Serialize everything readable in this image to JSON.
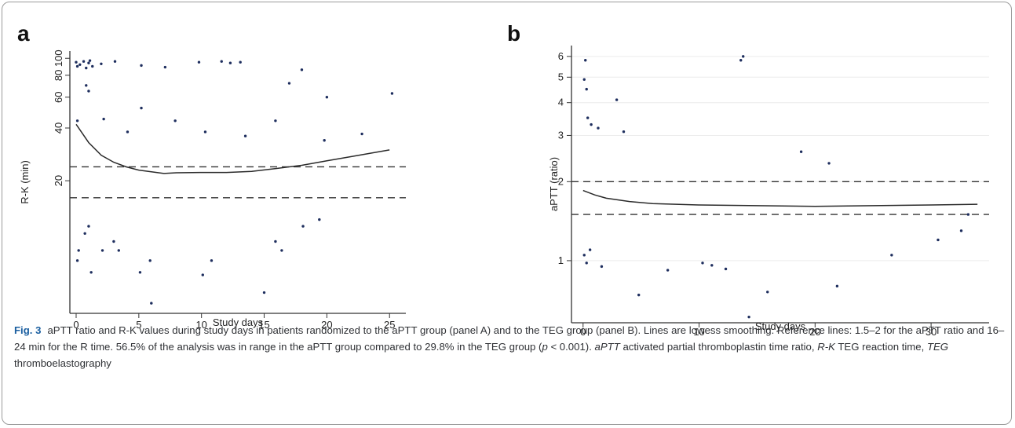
{
  "figure": {
    "caption_label": "Fig. 3",
    "caption_parts": [
      {
        "text": "aPTT ratio and R-K values during study days in patients randomized to the aPTT group (panel A) and to the TEG group (panel B). Lines are lowess smoothing. Reference lines: 1.5–2 for the aPTT ratio and 16–24 min for the R time. 56.5% of the analysis was in range in the aPTT group compared to 29.8% in the TEG group (",
        "italic": false
      },
      {
        "text": "p",
        "italic": true
      },
      {
        "text": " < 0.001). ",
        "italic": false
      },
      {
        "text": "aPTT",
        "italic": true
      },
      {
        "text": " activated partial thromboplastin time ratio, ",
        "italic": false
      },
      {
        "text": "R-K",
        "italic": true
      },
      {
        "text": " TEG reaction time, ",
        "italic": false
      },
      {
        "text": "TEG",
        "italic": true
      },
      {
        "text": " thromboelastography",
        "italic": false
      }
    ]
  },
  "chart_data": [
    {
      "panel_label": "a",
      "type": "scatter",
      "xlabel": "Study days",
      "ylabel": "R-K (min)",
      "xlim": [
        -0.5,
        26.3
      ],
      "x_ticks": [
        0,
        5,
        10,
        15,
        20,
        25
      ],
      "ylim": [
        3.5,
        110
      ],
      "y_scale": "log",
      "y_ticks": [
        20,
        40,
        60,
        80,
        100
      ],
      "grid": false,
      "reference_lines": [
        16,
        24
      ],
      "lowess": [
        {
          "x": 0,
          "y": 42
        },
        {
          "x": 1,
          "y": 33
        },
        {
          "x": 2,
          "y": 28
        },
        {
          "x": 3,
          "y": 25.5
        },
        {
          "x": 4,
          "y": 24
        },
        {
          "x": 5,
          "y": 23
        },
        {
          "x": 6,
          "y": 22.5
        },
        {
          "x": 7,
          "y": 22
        },
        {
          "x": 8,
          "y": 22.2
        },
        {
          "x": 10,
          "y": 22.3
        },
        {
          "x": 12,
          "y": 22.3
        },
        {
          "x": 14,
          "y": 22.6
        },
        {
          "x": 16,
          "y": 23.5
        },
        {
          "x": 18,
          "y": 24.5
        },
        {
          "x": 20,
          "y": 26
        },
        {
          "x": 22,
          "y": 27.5
        },
        {
          "x": 25,
          "y": 30
        }
      ],
      "points": [
        {
          "x": 0,
          "y": 95
        },
        {
          "x": 0.1,
          "y": 90
        },
        {
          "x": 0.3,
          "y": 92
        },
        {
          "x": 0.6,
          "y": 96
        },
        {
          "x": 0.8,
          "y": 88
        },
        {
          "x": 1,
          "y": 94
        },
        {
          "x": 1.1,
          "y": 97
        },
        {
          "x": 1.3,
          "y": 90
        },
        {
          "x": 2,
          "y": 93
        },
        {
          "x": 3.1,
          "y": 96
        },
        {
          "x": 5.2,
          "y": 91
        },
        {
          "x": 7.1,
          "y": 89
        },
        {
          "x": 9.8,
          "y": 95
        },
        {
          "x": 11.6,
          "y": 96
        },
        {
          "x": 12.3,
          "y": 94
        },
        {
          "x": 13.1,
          "y": 95
        },
        {
          "x": 18,
          "y": 86
        },
        {
          "x": 25.2,
          "y": 63
        },
        {
          "x": 17,
          "y": 72
        },
        {
          "x": 20,
          "y": 60
        },
        {
          "x": 1,
          "y": 65
        },
        {
          "x": 0.8,
          "y": 70
        },
        {
          "x": 2.2,
          "y": 45
        },
        {
          "x": 0.1,
          "y": 44
        },
        {
          "x": 4.1,
          "y": 38
        },
        {
          "x": 5.2,
          "y": 52
        },
        {
          "x": 7.9,
          "y": 44
        },
        {
          "x": 10.3,
          "y": 38
        },
        {
          "x": 13.5,
          "y": 36
        },
        {
          "x": 15.9,
          "y": 44
        },
        {
          "x": 19.8,
          "y": 34
        },
        {
          "x": 22.8,
          "y": 37
        },
        {
          "x": 0.2,
          "y": 8
        },
        {
          "x": 0.1,
          "y": 7
        },
        {
          "x": 0.7,
          "y": 10
        },
        {
          "x": 1,
          "y": 11
        },
        {
          "x": 1.2,
          "y": 6
        },
        {
          "x": 2.1,
          "y": 8
        },
        {
          "x": 3,
          "y": 9
        },
        {
          "x": 3.4,
          "y": 8
        },
        {
          "x": 5.1,
          "y": 6
        },
        {
          "x": 5.9,
          "y": 7
        },
        {
          "x": 6,
          "y": 4
        },
        {
          "x": 10.1,
          "y": 5.8
        },
        {
          "x": 10.8,
          "y": 7
        },
        {
          "x": 15,
          "y": 4.6
        },
        {
          "x": 15.9,
          "y": 9
        },
        {
          "x": 16.4,
          "y": 8
        },
        {
          "x": 18.1,
          "y": 11
        },
        {
          "x": 19.4,
          "y": 12
        }
      ]
    },
    {
      "panel_label": "b",
      "type": "scatter",
      "xlabel": "Study days",
      "ylabel": "aPTT (ratio)",
      "xlim": [
        -1,
        35
      ],
      "x_ticks": [
        0,
        10,
        20,
        30
      ],
      "ylim": [
        0.58,
        6.6
      ],
      "y_scale": "log",
      "y_ticks": [
        1,
        2,
        3,
        4,
        5,
        6
      ],
      "grid": true,
      "reference_lines": [
        1.5,
        2
      ],
      "lowess": [
        {
          "x": 0,
          "y": 1.85
        },
        {
          "x": 1,
          "y": 1.78
        },
        {
          "x": 2,
          "y": 1.73
        },
        {
          "x": 4,
          "y": 1.68
        },
        {
          "x": 6,
          "y": 1.65
        },
        {
          "x": 8,
          "y": 1.64
        },
        {
          "x": 10,
          "y": 1.63
        },
        {
          "x": 15,
          "y": 1.62
        },
        {
          "x": 20,
          "y": 1.61
        },
        {
          "x": 25,
          "y": 1.62
        },
        {
          "x": 30,
          "y": 1.63
        },
        {
          "x": 34,
          "y": 1.64
        }
      ],
      "points": [
        {
          "x": 0.2,
          "y": 5.8
        },
        {
          "x": 0.1,
          "y": 4.9
        },
        {
          "x": 0.3,
          "y": 4.5
        },
        {
          "x": 0.4,
          "y": 3.5
        },
        {
          "x": 0.7,
          "y": 3.3
        },
        {
          "x": 1.3,
          "y": 3.2
        },
        {
          "x": 2.9,
          "y": 4.1
        },
        {
          "x": 3.5,
          "y": 3.1
        },
        {
          "x": 13.6,
          "y": 5.8
        },
        {
          "x": 13.8,
          "y": 6
        },
        {
          "x": 18.8,
          "y": 2.6
        },
        {
          "x": 21.2,
          "y": 2.35
        },
        {
          "x": 0.1,
          "y": 1.05
        },
        {
          "x": 0.3,
          "y": 0.98
        },
        {
          "x": 0.6,
          "y": 1.1
        },
        {
          "x": 1.6,
          "y": 0.95
        },
        {
          "x": 4.8,
          "y": 0.74
        },
        {
          "x": 7.3,
          "y": 0.92
        },
        {
          "x": 10.3,
          "y": 0.98
        },
        {
          "x": 11.1,
          "y": 0.96
        },
        {
          "x": 12.3,
          "y": 0.93
        },
        {
          "x": 14.3,
          "y": 0.61
        },
        {
          "x": 15.9,
          "y": 0.76
        },
        {
          "x": 21.9,
          "y": 0.8
        },
        {
          "x": 26.6,
          "y": 1.05
        },
        {
          "x": 30.6,
          "y": 1.2
        },
        {
          "x": 32.6,
          "y": 1.3
        },
        {
          "x": 33.2,
          "y": 1.5
        }
      ]
    }
  ]
}
